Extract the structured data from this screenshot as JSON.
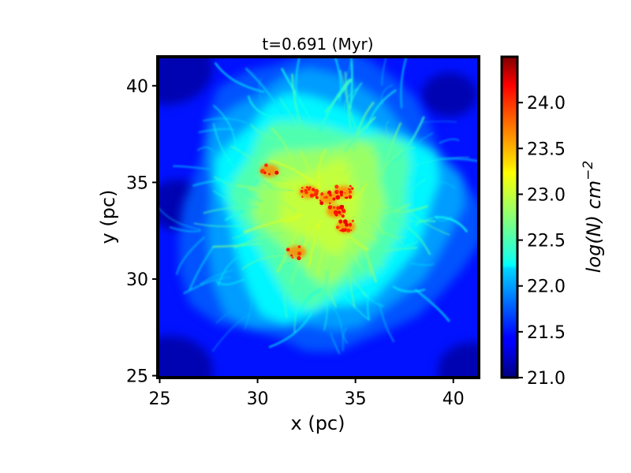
{
  "chart_data": {
    "type": "heatmap",
    "title": "t=0.691 (Myr)",
    "xlabel": "x (pc)",
    "ylabel": "y (pc)",
    "xlim": [
      24.9,
      41.3
    ],
    "ylim": [
      24.9,
      41.5
    ],
    "x_ticks": [
      {
        "value": 25,
        "label": "25"
      },
      {
        "value": 30,
        "label": "30"
      },
      {
        "value": 35,
        "label": "35"
      },
      {
        "value": 40,
        "label": "40"
      }
    ],
    "y_ticks": [
      {
        "value": 25,
        "label": "25"
      },
      {
        "value": 30,
        "label": "30"
      },
      {
        "value": 35,
        "label": "35"
      },
      {
        "value": 40,
        "label": "40"
      }
    ],
    "colorbar": {
      "label": "log(N) cm−2",
      "label_main": "log(N) cm",
      "label_exp": "−2",
      "colormap": "jet",
      "range": [
        21.0,
        24.5
      ],
      "ticks": [
        {
          "value": 21.0,
          "label": "21.0"
        },
        {
          "value": 21.5,
          "label": "21.5"
        },
        {
          "value": 22.0,
          "label": "22.0"
        },
        {
          "value": 22.5,
          "label": "22.5"
        },
        {
          "value": 23.0,
          "label": "23.0"
        },
        {
          "value": 23.5,
          "label": "23.5"
        },
        {
          "value": 24.0,
          "label": "24.0"
        }
      ]
    },
    "field": {
      "background_logN": 21.5,
      "cloud_center": [
        33.5,
        33.8
      ],
      "cloud_peak_logN": 23.0,
      "dense_core_logN": 24.0,
      "dense_clumps": [
        {
          "x": 32.6,
          "y": 34.5
        },
        {
          "x": 33.6,
          "y": 34.2
        },
        {
          "x": 34.0,
          "y": 33.5
        },
        {
          "x": 34.5,
          "y": 32.7
        },
        {
          "x": 34.4,
          "y": 34.5
        },
        {
          "x": 30.6,
          "y": 35.6
        },
        {
          "x": 32.0,
          "y": 31.4
        }
      ]
    }
  }
}
